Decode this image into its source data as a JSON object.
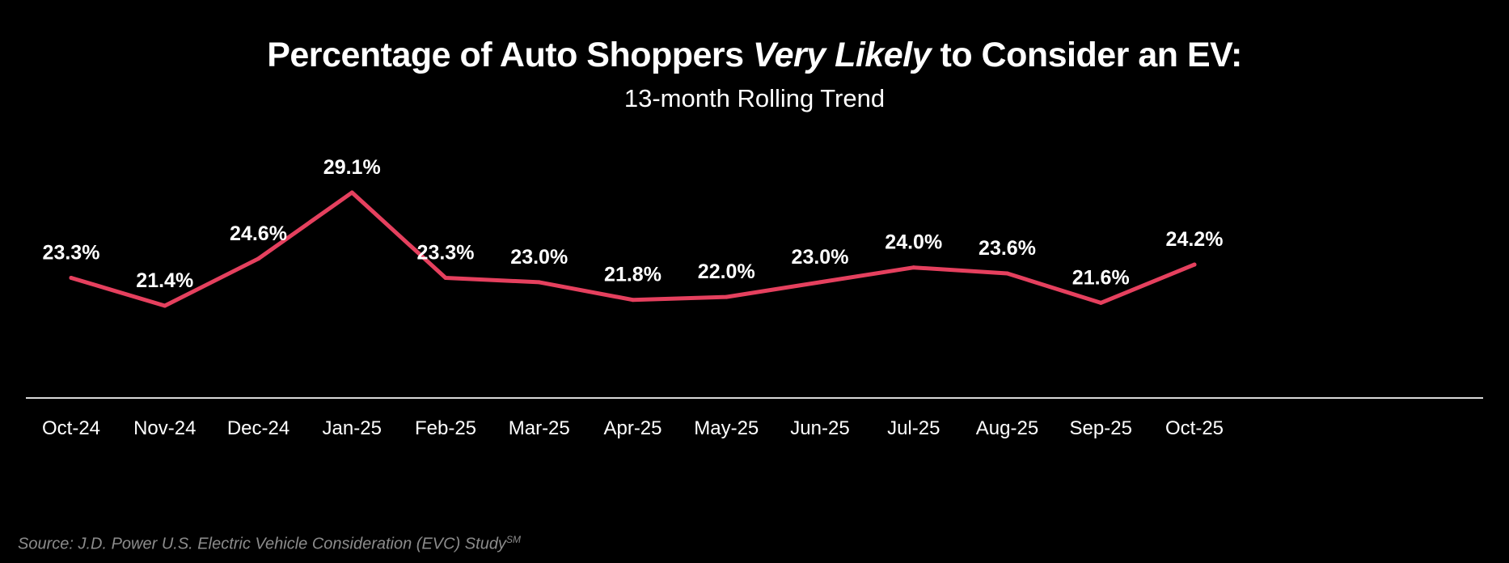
{
  "header": {
    "title_pre": "Percentage of Auto Shoppers ",
    "title_em": "Very Likely",
    "title_post": " to Consider an EV:",
    "subtitle": "13-month Rolling Trend"
  },
  "footer": {
    "source": "Source: J.D. Power U.S. Electric Vehicle Consideration (EVC) Study",
    "source_sup": "SM"
  },
  "colors": {
    "background": "#000000",
    "line": "#e5405e",
    "text": "#ffffff",
    "axis": "#d9d9d9",
    "source": "#8c8c8c"
  },
  "chart_data": {
    "type": "line",
    "categories": [
      "Oct-24",
      "Nov-24",
      "Dec-24",
      "Jan-25",
      "Feb-25",
      "Mar-25",
      "Apr-25",
      "May-25",
      "Jun-25",
      "Jul-25",
      "Aug-25",
      "Sep-25",
      "Oct-25"
    ],
    "series": [
      {
        "values": [
          23.3,
          21.4,
          24.6,
          29.1,
          23.3,
          23.0,
          21.8,
          22.0,
          23.0,
          24.0,
          23.6,
          21.6,
          24.2
        ],
        "labels": [
          "23.3%",
          "21.4%",
          "24.6%",
          "29.1%",
          "23.3%",
          "23.0%",
          "21.8%",
          "22.0%",
          "23.0%",
          "24.0%",
          "23.6%",
          "21.6%",
          "24.2%"
        ]
      }
    ],
    "ylim": [
      15,
      33
    ],
    "grid": false,
    "legend": "none",
    "y_axis_visible": false
  }
}
